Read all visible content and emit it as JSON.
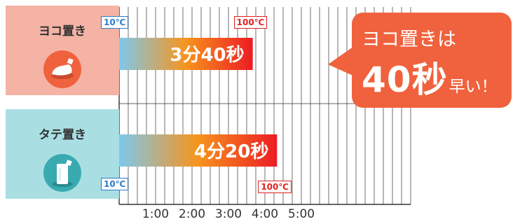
{
  "rows": [
    {
      "label": "ヨコ置き",
      "icon": "horizontal-bag-icon",
      "duration_label": "3分40秒",
      "start_temp": "10℃",
      "end_temp": "100℃"
    },
    {
      "label": "タテ置き",
      "icon": "vertical-bag-icon",
      "duration_label": "4分20秒",
      "start_temp": "10℃",
      "end_temp": "100℃"
    }
  ],
  "callout": {
    "line1": "ヨコ置きは",
    "big": "40秒",
    "small": "早い！"
  },
  "colors": {
    "yoko_panel": "#f5b3a5",
    "tate_panel": "#a9dfe3",
    "accent_orange": "#f0623d",
    "teal": "#3aaab1",
    "bar_start": "#7ec8ec",
    "bar_mid": "#f7941d",
    "bar_end": "#ec1c24",
    "grid": "#333333"
  },
  "chart_data": {
    "type": "bar",
    "orientation": "horizontal",
    "categories": [
      "ヨコ置き",
      "タテ置き"
    ],
    "values": [
      220,
      260
    ],
    "value_labels": [
      "3分40秒",
      "4分20秒"
    ],
    "unit": "seconds",
    "x_ticks": [
      "1:00",
      "2:00",
      "3:00",
      "4:00",
      "5:00"
    ],
    "xlim": [
      0,
      480
    ],
    "grid": true
  }
}
